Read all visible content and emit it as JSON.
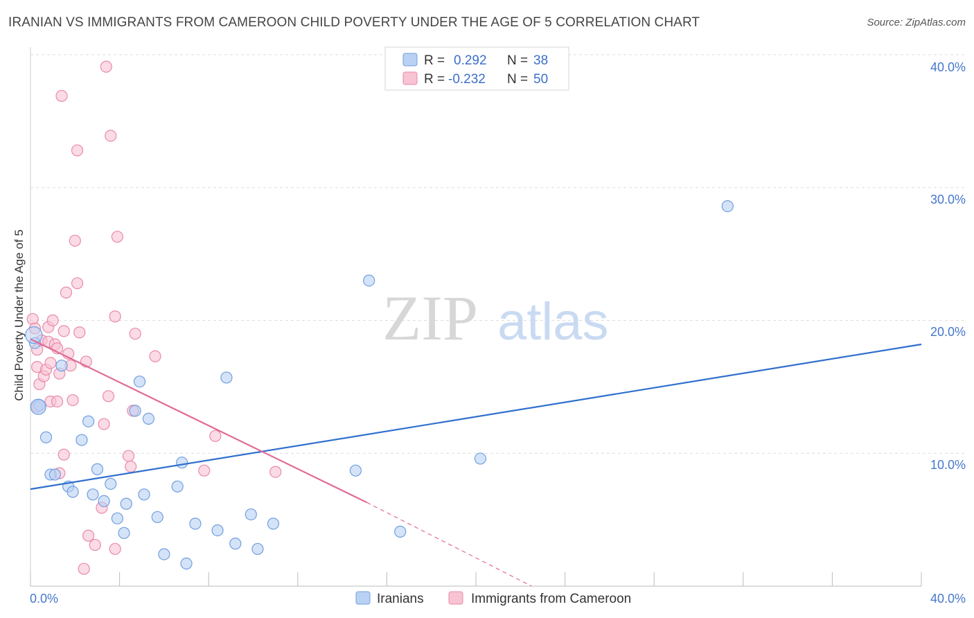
{
  "header": {
    "title": "IRANIAN VS IMMIGRANTS FROM CAMEROON CHILD POVERTY UNDER THE AGE OF 5 CORRELATION CHART",
    "source": "Source: ZipAtlas.com"
  },
  "watermark": {
    "zip": "ZIP",
    "atlas": "atlas"
  },
  "colors": {
    "blue_fill": "#b9d1f3",
    "blue_stroke": "#6f9ee0",
    "blue_line": "#2f6fce",
    "pink_fill": "#f8c3d3",
    "pink_stroke": "#e98aa8",
    "pink_line": "#e06a96",
    "tick_text": "#4477cc",
    "grid": "#dddddd"
  },
  "legend": {
    "rows": [
      {
        "r_label": "R =",
        "r_value": "0.292",
        "n_label": "N =",
        "n_value": "38"
      },
      {
        "r_label": "R =",
        "r_value": "-0.232",
        "n_label": "N =",
        "n_value": "50"
      }
    ]
  },
  "chart_data": {
    "type": "scatter",
    "title": "IRANIAN VS IMMIGRANTS FROM CAMEROON CHILD POVERTY UNDER THE AGE OF 5 CORRELATION CHART",
    "xlabel": "",
    "ylabel": "Child Poverty Under the Age of 5",
    "xlim": [
      0,
      40
    ],
    "ylim": [
      0,
      40
    ],
    "x_tick_labels": [
      "0.0%",
      "40.0%"
    ],
    "y_tick_labels": [
      "10.0%",
      "20.0%",
      "30.0%",
      "40.0%"
    ],
    "y_ticks": [
      10,
      20,
      30,
      40
    ],
    "grid": true,
    "legend_position": "top-center",
    "series": [
      {
        "name": "Iranians",
        "r": 0.292,
        "n": 38,
        "trend": {
          "x": [
            0,
            40
          ],
          "y": [
            7.3,
            18.2
          ]
        },
        "points": [
          {
            "x": 0.2,
            "y": 18.3
          },
          {
            "x": 0.4,
            "y": 13.6
          },
          {
            "x": 0.7,
            "y": 11.2
          },
          {
            "x": 0.9,
            "y": 8.4
          },
          {
            "x": 1.1,
            "y": 8.4
          },
          {
            "x": 1.4,
            "y": 16.6
          },
          {
            "x": 1.7,
            "y": 7.5
          },
          {
            "x": 1.9,
            "y": 7.1
          },
          {
            "x": 2.3,
            "y": 11.0
          },
          {
            "x": 2.6,
            "y": 12.4
          },
          {
            "x": 2.8,
            "y": 6.9
          },
          {
            "x": 3.0,
            "y": 8.8
          },
          {
            "x": 3.3,
            "y": 6.4
          },
          {
            "x": 3.6,
            "y": 7.7
          },
          {
            "x": 3.9,
            "y": 5.1
          },
          {
            "x": 4.2,
            "y": 4.0
          },
          {
            "x": 4.3,
            "y": 6.2
          },
          {
            "x": 4.7,
            "y": 13.2
          },
          {
            "x": 4.9,
            "y": 15.4
          },
          {
            "x": 5.1,
            "y": 6.9
          },
          {
            "x": 5.3,
            "y": 12.6
          },
          {
            "x": 5.7,
            "y": 5.2
          },
          {
            "x": 6.0,
            "y": 2.4
          },
          {
            "x": 6.6,
            "y": 7.5
          },
          {
            "x": 6.8,
            "y": 9.3
          },
          {
            "x": 7.0,
            "y": 1.7
          },
          {
            "x": 7.4,
            "y": 4.7
          },
          {
            "x": 8.4,
            "y": 4.2
          },
          {
            "x": 8.8,
            "y": 15.7
          },
          {
            "x": 9.2,
            "y": 3.2
          },
          {
            "x": 9.9,
            "y": 5.4
          },
          {
            "x": 10.2,
            "y": 2.8
          },
          {
            "x": 10.9,
            "y": 4.7
          },
          {
            "x": 14.6,
            "y": 8.7
          },
          {
            "x": 15.2,
            "y": 23.0
          },
          {
            "x": 16.6,
            "y": 4.1
          },
          {
            "x": 20.2,
            "y": 9.6
          },
          {
            "x": 31.3,
            "y": 28.6
          }
        ]
      },
      {
        "name": "Immigrants from Cameroon",
        "r": -0.232,
        "n": 50,
        "trend": {
          "x": [
            0,
            15.1
          ],
          "y": [
            18.6,
            6.3
          ]
        },
        "trend_dashed": {
          "x": [
            15.1,
            22.5
          ],
          "y": [
            6.3,
            0
          ]
        },
        "points": [
          {
            "x": 0.1,
            "y": 20.1
          },
          {
            "x": 0.2,
            "y": 19.4
          },
          {
            "x": 0.3,
            "y": 17.8
          },
          {
            "x": 0.3,
            "y": 16.5
          },
          {
            "x": 0.4,
            "y": 15.2
          },
          {
            "x": 0.5,
            "y": 18.5
          },
          {
            "x": 0.6,
            "y": 15.8
          },
          {
            "x": 0.7,
            "y": 16.3
          },
          {
            "x": 0.8,
            "y": 19.5
          },
          {
            "x": 0.8,
            "y": 18.4
          },
          {
            "x": 0.9,
            "y": 16.8
          },
          {
            "x": 0.9,
            "y": 13.9
          },
          {
            "x": 1.0,
            "y": 20.0
          },
          {
            "x": 1.1,
            "y": 18.2
          },
          {
            "x": 1.2,
            "y": 17.9
          },
          {
            "x": 1.2,
            "y": 13.9
          },
          {
            "x": 1.3,
            "y": 16.0
          },
          {
            "x": 1.3,
            "y": 8.5
          },
          {
            "x": 1.4,
            "y": 36.9
          },
          {
            "x": 1.5,
            "y": 19.2
          },
          {
            "x": 1.5,
            "y": 9.9
          },
          {
            "x": 1.6,
            "y": 22.1
          },
          {
            "x": 1.7,
            "y": 17.5
          },
          {
            "x": 1.8,
            "y": 16.6
          },
          {
            "x": 1.9,
            "y": 14.0
          },
          {
            "x": 2.0,
            "y": 26.0
          },
          {
            "x": 2.1,
            "y": 32.8
          },
          {
            "x": 2.1,
            "y": 22.8
          },
          {
            "x": 2.2,
            "y": 19.1
          },
          {
            "x": 2.4,
            "y": 1.3
          },
          {
            "x": 2.5,
            "y": 16.9
          },
          {
            "x": 2.6,
            "y": 3.8
          },
          {
            "x": 2.9,
            "y": 3.1
          },
          {
            "x": 3.2,
            "y": 5.9
          },
          {
            "x": 3.3,
            "y": 12.2
          },
          {
            "x": 3.4,
            "y": 39.1
          },
          {
            "x": 3.5,
            "y": 14.3
          },
          {
            "x": 3.6,
            "y": 33.9
          },
          {
            "x": 3.8,
            "y": 20.3
          },
          {
            "x": 3.8,
            "y": 2.8
          },
          {
            "x": 3.9,
            "y": 26.3
          },
          {
            "x": 4.4,
            "y": 9.8
          },
          {
            "x": 4.5,
            "y": 9.0
          },
          {
            "x": 4.6,
            "y": 13.2
          },
          {
            "x": 4.7,
            "y": 19.0
          },
          {
            "x": 5.6,
            "y": 17.3
          },
          {
            "x": 7.8,
            "y": 8.7
          },
          {
            "x": 8.3,
            "y": 11.3
          },
          {
            "x": 11.0,
            "y": 8.6
          },
          {
            "x": 0.3,
            "y": 13.5
          }
        ]
      }
    ]
  }
}
